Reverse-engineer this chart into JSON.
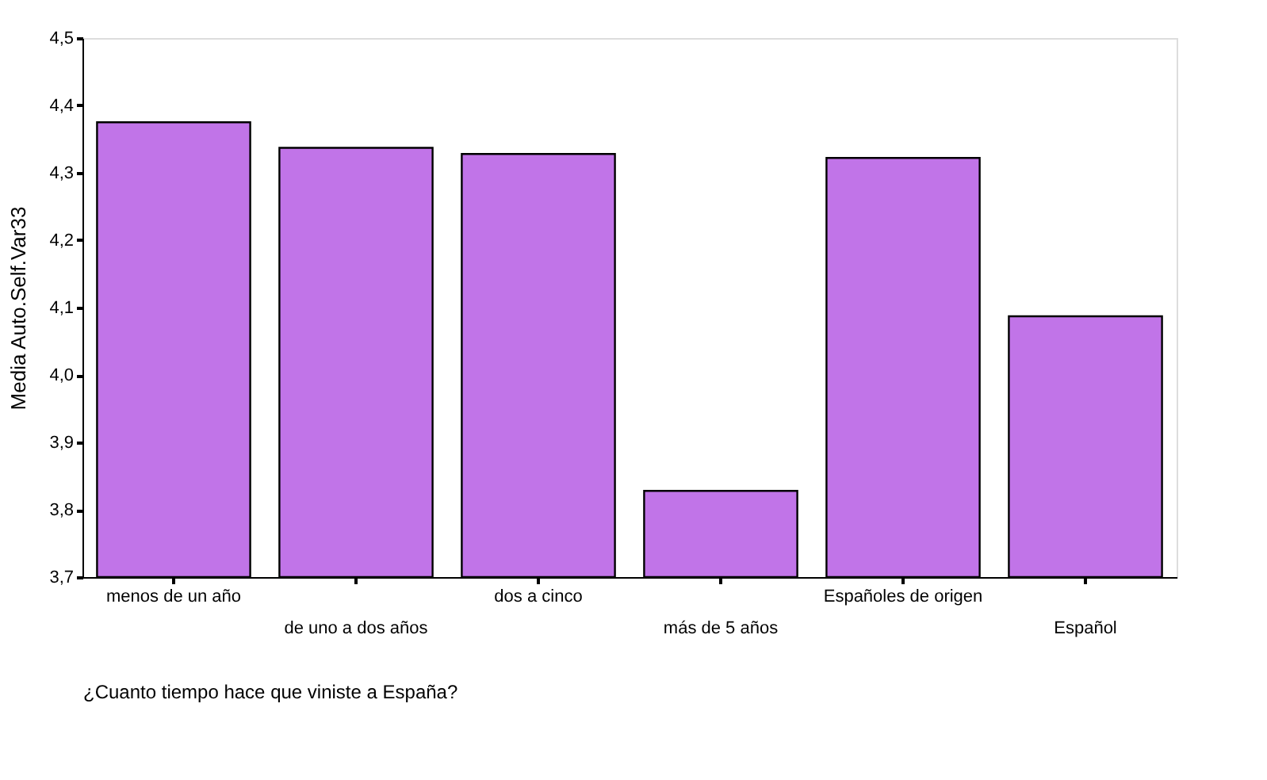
{
  "chart_data": {
    "type": "bar",
    "categories": [
      "menos de un año",
      "de uno a dos años",
      "dos a cinco",
      "más de 5 años",
      "Españoles de origen",
      "Español"
    ],
    "values": [
      4.375,
      4.337,
      4.328,
      3.828,
      4.322,
      4.087
    ],
    "color": "#c174e8",
    "ylim": [
      3.7,
      4.5
    ],
    "yticks": [
      {
        "value": 3.7,
        "label": "3,7"
      },
      {
        "value": 3.8,
        "label": "3,8"
      },
      {
        "value": 3.9,
        "label": "3,9"
      },
      {
        "value": 4.0,
        "label": "4,0"
      },
      {
        "value": 4.1,
        "label": "4,1"
      },
      {
        "value": 4.2,
        "label": "4,2"
      },
      {
        "value": 4.3,
        "label": "4,3"
      },
      {
        "value": 4.4,
        "label": "4,4"
      },
      {
        "value": 4.5,
        "label": "4,5"
      }
    ],
    "xlabel": "¿Cuanto tiempo hace que viniste a España?",
    "ylabel": "Media Auto.Self.Var33",
    "grid": false
  }
}
